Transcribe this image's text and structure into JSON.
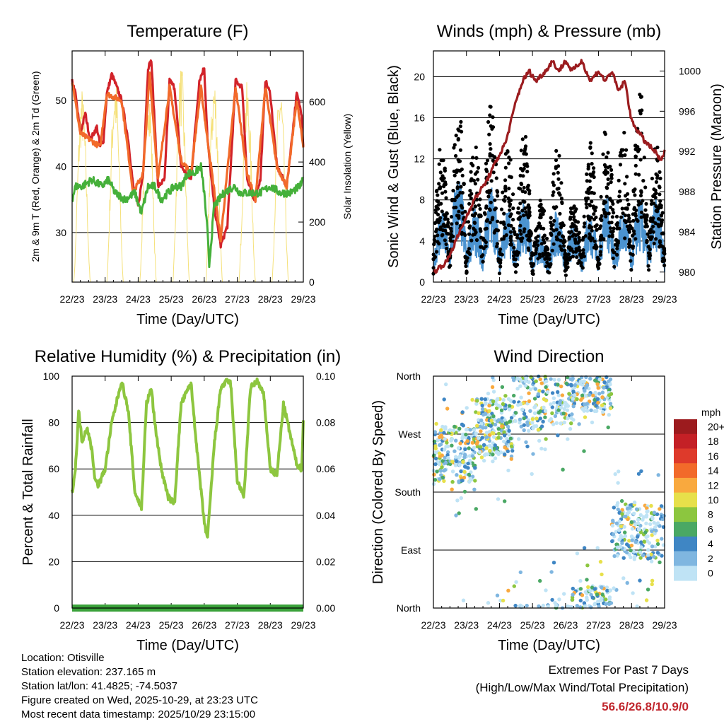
{
  "chart_data": [
    {
      "type": "line",
      "title": "Temperature (F)",
      "xlabel": "Time (Day/UTC)",
      "ylabel": "2m & 9m T (Red, Orange) & 2m Td (Green)",
      "ylabel_right": "Solar Insolation (Yellow)",
      "categories": [
        "22/23",
        "23/23",
        "24/23",
        "25/23",
        "26/23",
        "27/23",
        "28/23",
        "29/23"
      ],
      "ylim": [
        22.5,
        57.5
      ],
      "yticks": [
        30,
        40,
        50
      ],
      "ylim_right": [
        0,
        770
      ],
      "yticks_right": [
        0,
        200,
        400,
        600
      ],
      "series": [
        {
          "name": "2m T",
          "color": "#d2232a",
          "x": [
            0,
            0.1,
            0.25,
            0.4,
            0.55,
            0.75,
            0.85,
            0.95,
            1.05,
            1.2,
            1.5,
            1.7,
            1.85,
            2,
            2.15,
            2.3,
            2.4,
            2.6,
            2.8,
            2.95,
            3.1,
            3.3,
            3.6,
            3.85,
            4.0,
            4.1,
            4.3,
            4.5,
            4.7,
            4.95,
            5.15,
            5.3,
            5.5,
            5.7,
            5.85,
            6.0,
            6.2,
            6.5,
            6.8,
            6.95,
            7
          ],
          "values": [
            53,
            51,
            45,
            48,
            44,
            46,
            43,
            44,
            51,
            54,
            50,
            44,
            37,
            34,
            39,
            55,
            56,
            37,
            38,
            53,
            52,
            40,
            38,
            53,
            55,
            44,
            34,
            28,
            31,
            53,
            52,
            38,
            35,
            38,
            53,
            51,
            40,
            37,
            51,
            48,
            43
          ]
        },
        {
          "name": "9m T",
          "color": "#f26a2a",
          "x": [
            0,
            0.25,
            0.55,
            0.85,
            1.05,
            1.5,
            1.85,
            2.15,
            2.35,
            2.6,
            2.95,
            3.3,
            3.6,
            3.9,
            4.1,
            4.5,
            4.95,
            5.3,
            5.55,
            5.85,
            6.2,
            6.5,
            6.8,
            7
          ],
          "values": [
            53,
            45,
            44,
            43,
            51,
            50,
            36,
            39,
            54,
            38,
            52,
            41,
            39,
            52,
            44,
            29,
            52,
            39,
            35,
            52,
            40,
            37,
            50,
            43
          ]
        },
        {
          "name": "2m Td",
          "color": "#45b03a",
          "x": [
            0,
            0.1,
            0.3,
            0.6,
            0.9,
            1.1,
            1.3,
            1.6,
            1.9,
            2.1,
            2.3,
            2.5,
            2.7,
            2.9,
            3.1,
            3.3,
            3.5,
            3.7,
            3.9,
            4.0,
            4.1,
            4.15,
            4.3,
            4.6,
            4.9,
            5.1,
            5.4,
            5.7,
            6.0,
            6.3,
            6.6,
            6.9,
            7
          ],
          "values": [
            35,
            37,
            37,
            38,
            37,
            38,
            36,
            35,
            36,
            33,
            37,
            37,
            35,
            36,
            37,
            37,
            39,
            39,
            40,
            36,
            30,
            25,
            34,
            36,
            37,
            36,
            36,
            36,
            37,
            36,
            36,
            37,
            38
          ]
        }
      ],
      "insolation_peaks": [
        650,
        700,
        720,
        730,
        700,
        670,
        680,
        560
      ]
    },
    {
      "type": "scatter",
      "title": "Winds (mph) & Pressure (mb)",
      "xlabel": "Time (Day/UTC)",
      "ylabel": "Sonic Wind & Gust (Blue, Black)",
      "ylabel_right": "Station Pressure (Maroon)",
      "categories": [
        "22/23",
        "23/23",
        "24/23",
        "25/23",
        "26/23",
        "27/23",
        "28/23",
        "29/23"
      ],
      "ylim": [
        0,
        22.5
      ],
      "yticks": [
        0,
        4,
        8,
        12,
        16,
        20
      ],
      "ylim_right": [
        979,
        1002
      ],
      "yticks_right": [
        980,
        984,
        988,
        992,
        996,
        1000
      ],
      "pressure": {
        "x": [
          0,
          0.4,
          0.8,
          1.2,
          1.6,
          1.9,
          2.2,
          2.5,
          2.7,
          2.9,
          3.1,
          3.4,
          3.6,
          3.8,
          4.0,
          4.2,
          4.5,
          4.75,
          5.0,
          5.2,
          5.4,
          5.6,
          5.8,
          6.0,
          6.2,
          6.4,
          6.7,
          6.9,
          7
        ],
        "values": [
          980,
          981,
          984,
          987,
          989,
          991,
          993,
          997,
          999,
          1000,
          999,
          1000,
          1001,
          1000,
          1001,
          1000,
          1001,
          999,
          1000,
          999,
          1000,
          998,
          999,
          995,
          994,
          993,
          992,
          991,
          992
        ]
      },
      "wind_peaks": [
        6,
        9,
        6,
        8,
        6,
        7,
        4,
        6,
        5,
        6,
        7,
        6,
        7,
        7
      ],
      "gust_peaks": [
        13,
        17,
        13,
        17,
        13,
        14,
        8,
        13,
        8,
        13,
        15,
        14,
        18,
        13
      ]
    },
    {
      "type": "line",
      "title": "Relative Humidity (%) & Precipitation (in)",
      "xlabel": "Time (Day/UTC)",
      "ylabel": "Percent & Total Rainfall",
      "categories": [
        "22/23",
        "23/23",
        "24/23",
        "25/23",
        "26/23",
        "27/23",
        "28/23",
        "29/23"
      ],
      "ylim": [
        0,
        100
      ],
      "yticks": [
        0,
        20,
        40,
        60,
        80,
        100
      ],
      "ylim_right": [
        0,
        0.1
      ],
      "yticks_right": [
        "0.00",
        "0.02",
        "0.04",
        "0.06",
        "0.08",
        "0.10"
      ],
      "series": [
        {
          "name": "RH",
          "color": "#8dc63f",
          "x": [
            0,
            0.1,
            0.2,
            0.3,
            0.45,
            0.6,
            0.7,
            0.8,
            1.0,
            1.2,
            1.5,
            1.7,
            1.9,
            2.1,
            2.25,
            2.4,
            2.5,
            2.7,
            2.9,
            3.1,
            3.3,
            3.6,
            3.8,
            4.0,
            4.1,
            4.3,
            4.5,
            4.7,
            4.8,
            5.0,
            5.2,
            5.4,
            5.6,
            5.8,
            6.0,
            6.2,
            6.4,
            6.6,
            6.8,
            6.95,
            7
          ],
          "values": [
            50,
            60,
            85,
            72,
            78,
            68,
            55,
            53,
            60,
            80,
            98,
            85,
            50,
            43,
            88,
            95,
            80,
            60,
            48,
            45,
            88,
            97,
            65,
            37,
            30,
            70,
            95,
            98,
            97,
            55,
            48,
            95,
            98,
            92,
            60,
            57,
            88,
            75,
            62,
            60,
            80
          ]
        },
        {
          "name": "Total Precipitation",
          "color": "#3aa23a",
          "x": [
            0,
            7
          ],
          "values": [
            0,
            0
          ]
        }
      ]
    },
    {
      "type": "scatter",
      "title": "Wind Direction",
      "xlabel": "Time (Day/UTC)",
      "ylabel": "Direction (Colored By Speed)",
      "categories": [
        "22/23",
        "23/23",
        "24/23",
        "25/23",
        "26/23",
        "27/23",
        "28/23",
        "29/23"
      ],
      "yticks": [
        "North",
        "East",
        "South",
        "West",
        "North"
      ],
      "colorbar_title": "mph",
      "colorbar_labels": [
        "20+",
        "18",
        "16",
        "14",
        "12",
        "10",
        "8",
        "6",
        "4",
        "2",
        "0"
      ],
      "colorbar_colors": [
        "#9c1b1e",
        "#c42026",
        "#de3a2b",
        "#f26a2a",
        "#f9a93e",
        "#e7e04a",
        "#8cc63f",
        "#4aa864",
        "#3f86c4",
        "#7fb6e0",
        "#bfe3f5"
      ],
      "direction_bands": [
        {
          "day_start": 0,
          "day_end": 1.3,
          "dir_center": 240
        },
        {
          "day_start": 1.3,
          "day_end": 2.4,
          "dir_center": 280
        },
        {
          "day_start": 2.4,
          "day_end": 4.2,
          "dir_center": 320
        },
        {
          "day_start": 4.2,
          "day_end": 5.4,
          "dir_center": 350
        },
        {
          "day_start": 5.4,
          "day_end": 7.0,
          "dir_center": 120
        }
      ]
    }
  ],
  "info": {
    "location": "Location: Otisville",
    "elevation": "Station elevation: 237.165 m",
    "latlon": "Station lat/lon: 41.4825; -74.5037",
    "created": "Figure created on Wed, 2025-10-29, at 23:23 UTC",
    "recent": "Most recent data timestamp: 2025/10/29 23:15:00"
  },
  "extremes": {
    "title": "Extremes For Past 7 Days",
    "subtitle": "(High/Low/Max Wind/Total Precipitation)",
    "values": "56.6/26.8/10.9/0"
  }
}
